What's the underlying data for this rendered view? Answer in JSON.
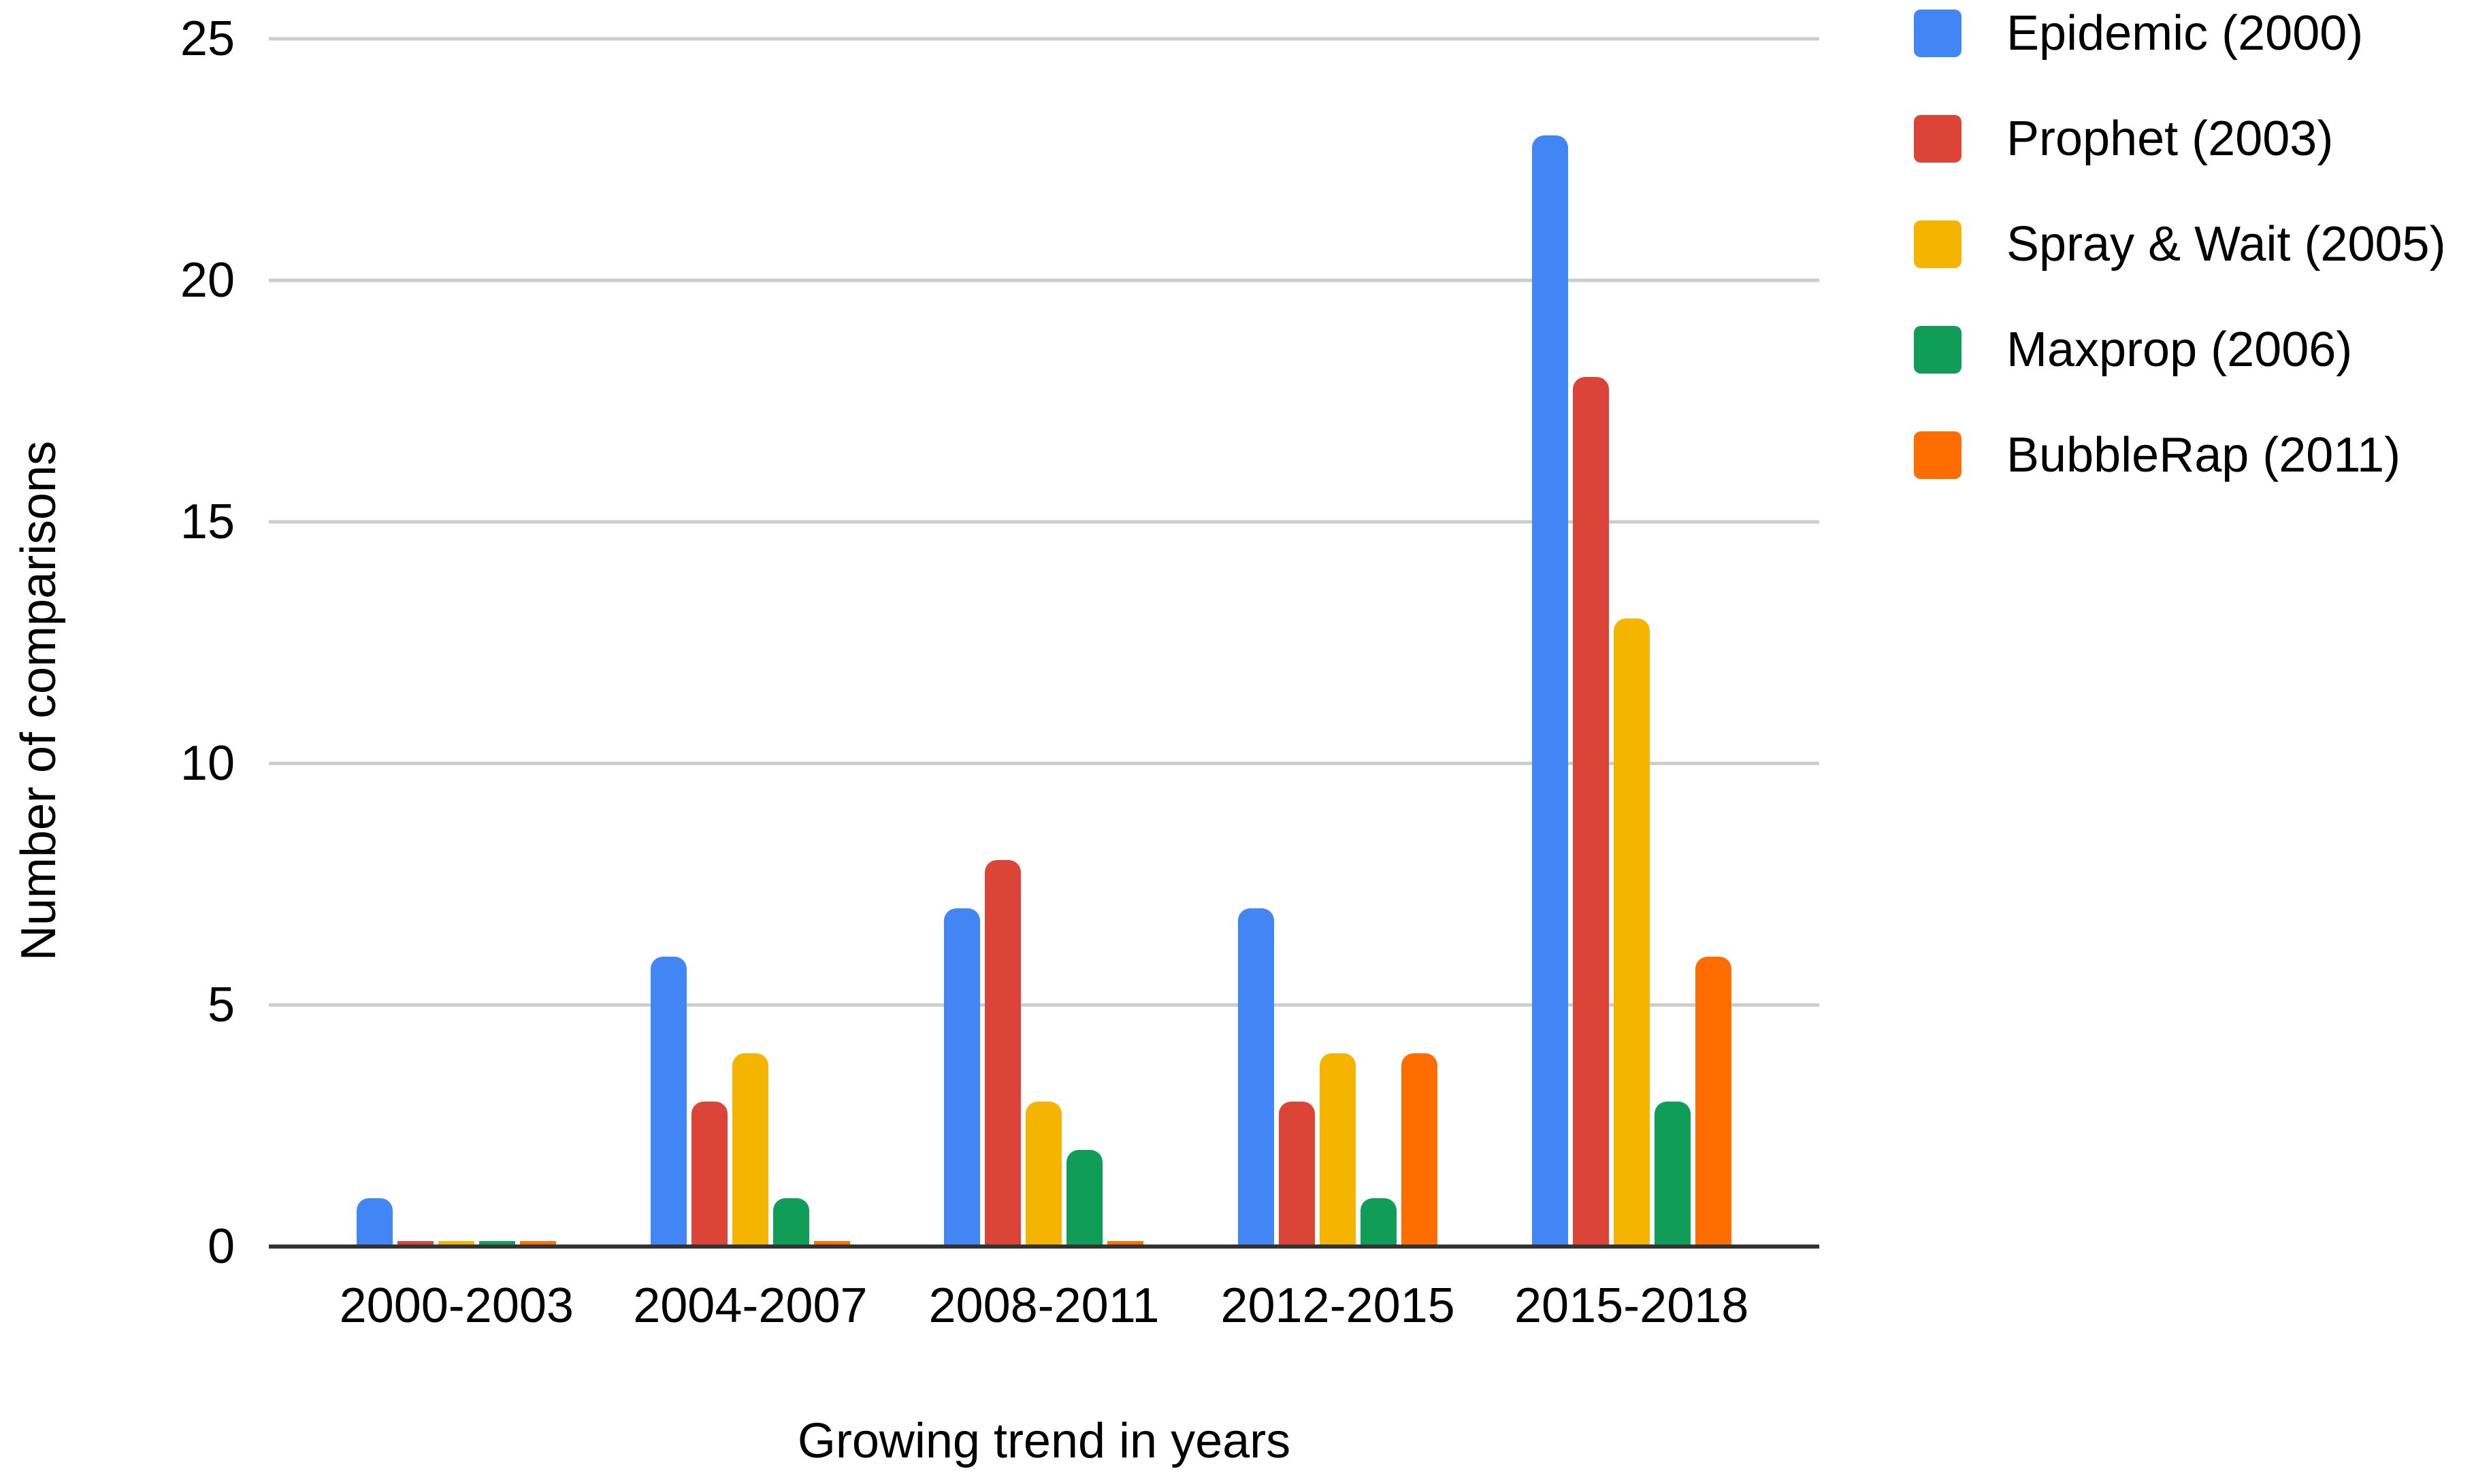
{
  "chart_data": {
    "type": "bar",
    "title": "",
    "xlabel": "Growing trend in years",
    "ylabel": "Number of comparisons",
    "categories": [
      "2000-2003",
      "2004-2007",
      "2008-2011",
      "2012-2015",
      "2015-2018"
    ],
    "series": [
      {
        "name": "Epidemic (2000)",
        "color": "#4285F4",
        "values": [
          1,
          6,
          7,
          7,
          23
        ]
      },
      {
        "name": "Prophet (2003)",
        "color": "#DB4437",
        "values": [
          0,
          3,
          8,
          3,
          18
        ]
      },
      {
        "name": "Spray & Wait (2005)",
        "color": "#F4B400",
        "values": [
          0,
          4,
          3,
          4,
          13
        ]
      },
      {
        "name": "Maxprop (2006)",
        "color": "#109D58",
        "values": [
          0,
          1,
          2,
          1,
          3
        ]
      },
      {
        "name": "BubbleRap (2011)",
        "color": "#FF6D00",
        "values": [
          0,
          0,
          0,
          4,
          6
        ]
      }
    ],
    "ylim": [
      0,
      25
    ],
    "yticks": [
      0,
      5,
      10,
      15,
      20,
      25
    ],
    "grid": true,
    "legend_position": "top-right",
    "gridline_color": "#cccccc",
    "axis_line_color": "#333333",
    "text_color": "#000000"
  }
}
